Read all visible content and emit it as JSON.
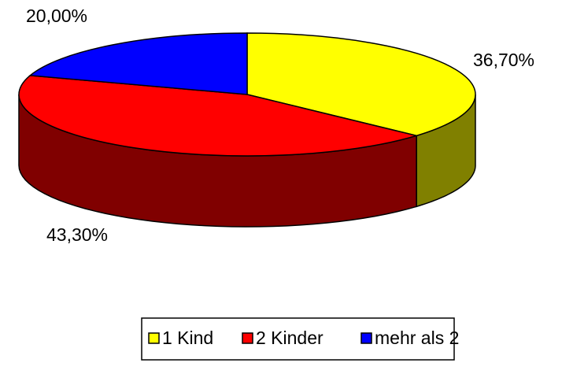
{
  "chart_data": {
    "type": "pie",
    "categories": [
      "1 Kind",
      "2 Kinder",
      "mehr als 2"
    ],
    "values": [
      36.7,
      43.3,
      20
    ],
    "value_labels": [
      "36,70%",
      "43,30%",
      "20,00%"
    ],
    "colors": [
      "#ffff00",
      "#ff0000",
      "#0000ff"
    ],
    "legend": "bottom"
  }
}
